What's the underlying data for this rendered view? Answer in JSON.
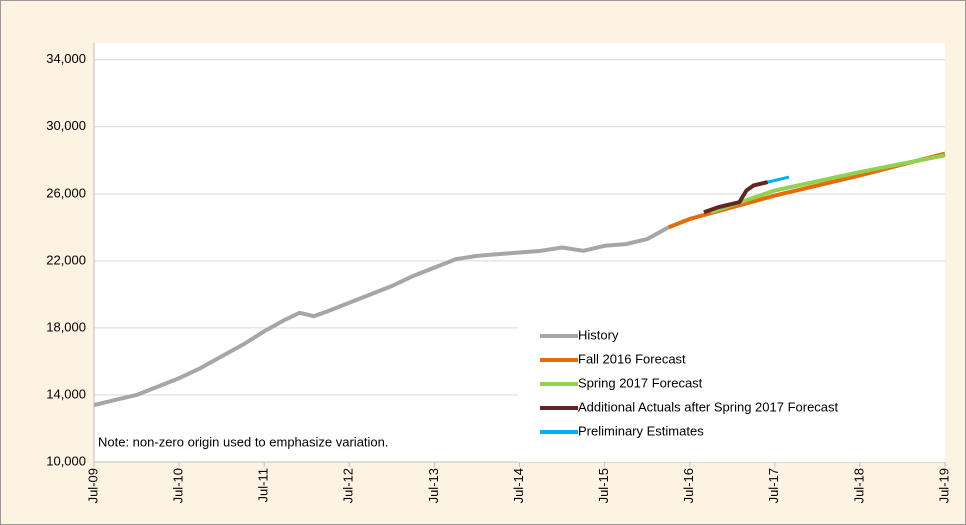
{
  "chart_data": {
    "type": "line",
    "note": "Note: non-zero origin used to emphasize variation.",
    "xlim": [
      "2009-07",
      "2019-07"
    ],
    "xticks": [
      {
        "value": "2009-07",
        "label": "Jul-09"
      },
      {
        "value": "2010-07",
        "label": "Jul-10"
      },
      {
        "value": "2011-07",
        "label": "Jul-11"
      },
      {
        "value": "2012-07",
        "label": "Jul-12"
      },
      {
        "value": "2013-07",
        "label": "Jul-13"
      },
      {
        "value": "2014-07",
        "label": "Jul-14"
      },
      {
        "value": "2015-07",
        "label": "Jul-15"
      },
      {
        "value": "2016-07",
        "label": "Jul-16"
      },
      {
        "value": "2017-07",
        "label": "Jul-17"
      },
      {
        "value": "2018-07",
        "label": "Jul-18"
      },
      {
        "value": "2019-07",
        "label": "Jul-19"
      }
    ],
    "ylim": [
      10000,
      35000
    ],
    "yticks": [
      {
        "value": 10000,
        "label": "10,000"
      },
      {
        "value": 14000,
        "label": "14,000"
      },
      {
        "value": 18000,
        "label": "18,000"
      },
      {
        "value": 22000,
        "label": "22,000"
      },
      {
        "value": 26000,
        "label": "26,000"
      },
      {
        "value": 30000,
        "label": "30,000"
      },
      {
        "value": 34000,
        "label": "34,000"
      }
    ],
    "grid": true,
    "legend": "bottom-right",
    "series": [
      {
        "name": "History",
        "color": "#a6a6a6",
        "x": [
          "2009-07",
          "2009-10",
          "2010-01",
          "2010-04",
          "2010-07",
          "2010-10",
          "2011-01",
          "2011-04",
          "2011-07",
          "2011-10",
          "2011-12",
          "2012-02",
          "2012-04",
          "2012-07",
          "2012-10",
          "2013-01",
          "2013-04",
          "2013-07",
          "2013-10",
          "2014-01",
          "2014-04",
          "2014-07",
          "2014-10",
          "2015-01",
          "2015-04",
          "2015-07",
          "2015-10",
          "2016-01",
          "2016-04"
        ],
        "values": [
          13400,
          13700,
          14000,
          14500,
          15000,
          15600,
          16300,
          17000,
          17800,
          18500,
          18900,
          18700,
          19000,
          19500,
          20000,
          20500,
          21100,
          21600,
          22100,
          22300,
          22400,
          22500,
          22600,
          22800,
          22600,
          22900,
          23000,
          23300,
          24000
        ]
      },
      {
        "name": "Fall 2016 Forecast",
        "color": "#e46c0a",
        "x": [
          "2016-04",
          "2016-07",
          "2017-07",
          "2018-07",
          "2019-07"
        ],
        "values": [
          24000,
          24500,
          25900,
          27100,
          28400
        ]
      },
      {
        "name": "Spring 2017 Forecast",
        "color": "#92d050",
        "x": [
          "2016-10",
          "2017-07",
          "2018-07",
          "2019-07"
        ],
        "values": [
          24900,
          26200,
          27300,
          28300
        ]
      },
      {
        "name": "Additional Actuals after Spring 2017 Forecast",
        "color": "#632523",
        "x": [
          "2016-09",
          "2016-11",
          "2017-02",
          "2017-03",
          "2017-04",
          "2017-06"
        ],
        "values": [
          24900,
          25200,
          25500,
          26200,
          26500,
          26700
        ]
      },
      {
        "name": "Preliminary Estimates",
        "color": "#00b0f0",
        "x": [
          "2017-06",
          "2017-09"
        ],
        "values": [
          26700,
          27000
        ]
      }
    ]
  }
}
